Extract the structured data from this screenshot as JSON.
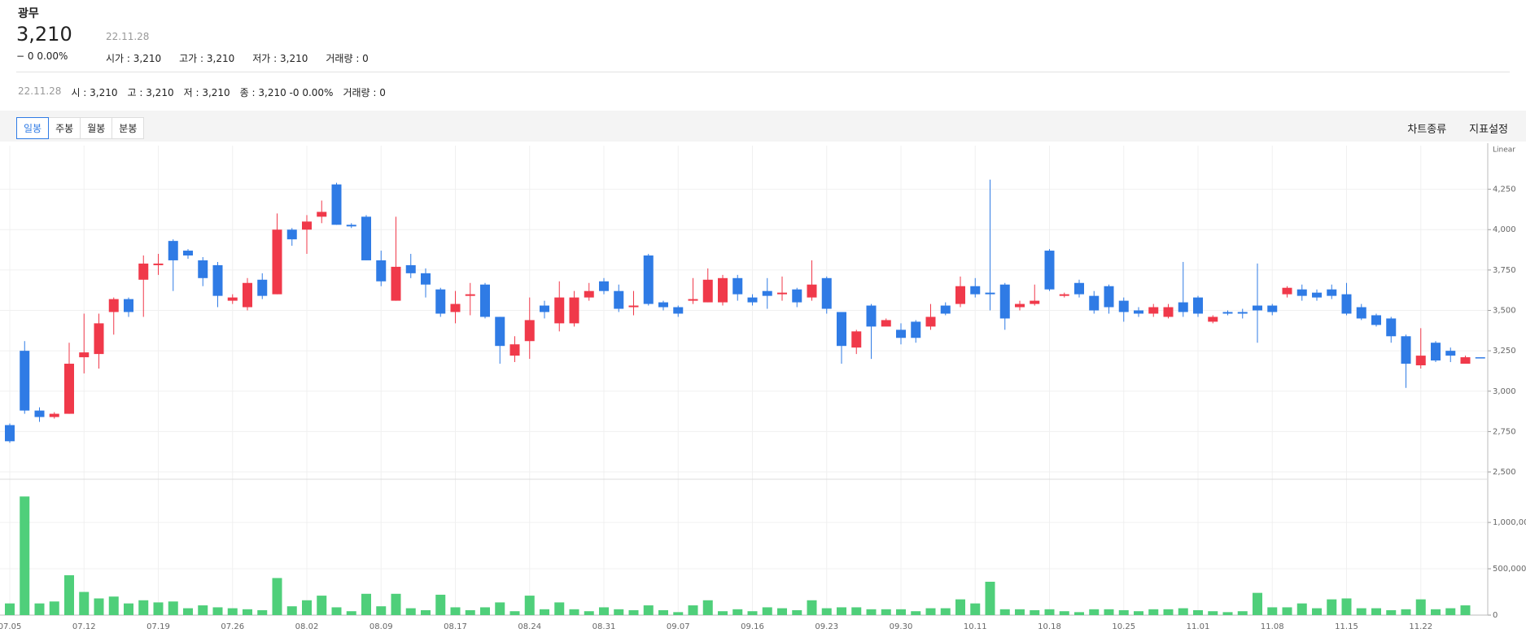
{
  "header": {
    "name": "광무",
    "price": "3,210",
    "date": "22.11.28",
    "change": "− 0 0.00%",
    "stats": [
      {
        "label": "시가",
        "value": "3,210"
      },
      {
        "label": "고가",
        "value": "3,210"
      },
      {
        "label": "저가",
        "value": "3,210"
      },
      {
        "label": "거래량",
        "value": "0"
      }
    ]
  },
  "info_line": {
    "date": "22.11.28",
    "items": [
      {
        "label": "시",
        "value": "3,210"
      },
      {
        "label": "고",
        "value": "3,210"
      },
      {
        "label": "저",
        "value": "3,210"
      },
      {
        "label": "종",
        "value": "3,210 -0 0.00%"
      },
      {
        "label": "거래량",
        "value": "0"
      }
    ]
  },
  "toolbar": {
    "periods": [
      "일봉",
      "주봉",
      "월봉",
      "분봉"
    ],
    "selected_index": 0,
    "menus": [
      "차트종류",
      "지표설정"
    ]
  },
  "chart_data": {
    "type": "candlestick",
    "scale_label": "Linear",
    "grid": true,
    "up_color": "#f0394a",
    "down_color": "#2f7be5",
    "categories": [
      "07.05",
      null,
      null,
      null,
      null,
      "07.12",
      null,
      null,
      null,
      null,
      "07.19",
      null,
      null,
      null,
      null,
      "07.26",
      null,
      null,
      null,
      null,
      "08.02",
      null,
      null,
      null,
      null,
      "08.09",
      null,
      null,
      null,
      null,
      "08.17",
      null,
      null,
      null,
      null,
      "08.24",
      null,
      null,
      null,
      null,
      "08.31",
      null,
      null,
      null,
      null,
      "09.07",
      null,
      null,
      null,
      null,
      "09.16",
      null,
      null,
      null,
      null,
      "09.23",
      null,
      null,
      null,
      null,
      "09.30",
      null,
      null,
      null,
      null,
      "10.11",
      null,
      null,
      null,
      null,
      "10.18",
      null,
      null,
      null,
      null,
      "10.25",
      null,
      null,
      null,
      null,
      "11.01",
      null,
      null,
      null,
      null,
      "11.08",
      null,
      null,
      null,
      null,
      "11.15",
      null,
      null,
      null,
      null,
      "11.22",
      null,
      null,
      null,
      null
    ],
    "open": [
      2790,
      3250,
      2880,
      2840,
      2860,
      3210,
      3230,
      3490,
      3570,
      3690,
      3780,
      3930,
      3870,
      3810,
      3780,
      3560,
      3520,
      3690,
      3600,
      4000,
      4000,
      4080,
      4280,
      4030,
      4080,
      3810,
      3560,
      3780,
      3730,
      3630,
      3490,
      3590,
      3660,
      3460,
      3220,
      3310,
      3530,
      3420,
      3420,
      3580,
      3680,
      3620,
      3520,
      3840,
      3550,
      3520,
      3560,
      3550,
      3550,
      3700,
      3580,
      3620,
      3600,
      3630,
      3580,
      3700,
      3490,
      3270,
      3530,
      3400,
      3380,
      3430,
      3400,
      3530,
      3540,
      3650,
      3610,
      3660,
      3520,
      3540,
      3870,
      3590,
      3670,
      3590,
      3650,
      3560,
      3500,
      3480,
      3460,
      3550,
      3580,
      3430,
      3490,
      3490,
      3530,
      3530,
      3600,
      3630,
      3610,
      3630,
      3600,
      3520,
      3470,
      3450,
      3340,
      3160,
      3300,
      3250,
      3170,
      3210
    ],
    "high": [
      2800,
      3310,
      2900,
      2870,
      3300,
      3480,
      3480,
      3580,
      3580,
      3840,
      3850,
      3940,
      3880,
      3830,
      3800,
      3600,
      3700,
      3730,
      4100,
      4010,
      4090,
      4180,
      4290,
      4040,
      4090,
      3870,
      4080,
      3850,
      3760,
      3640,
      3620,
      3670,
      3670,
      3460,
      3340,
      3580,
      3560,
      3680,
      3620,
      3670,
      3700,
      3660,
      3620,
      3850,
      3560,
      3530,
      3700,
      3760,
      3720,
      3720,
      3600,
      3700,
      3710,
      3640,
      3810,
      3710,
      3490,
      3380,
      3540,
      3450,
      3420,
      3440,
      3540,
      3550,
      3710,
      3700,
      4310,
      3670,
      3560,
      3660,
      3880,
      3610,
      3690,
      3620,
      3660,
      3580,
      3520,
      3540,
      3540,
      3800,
      3590,
      3470,
      3500,
      3510,
      3790,
      3540,
      3650,
      3660,
      3630,
      3660,
      3670,
      3540,
      3480,
      3460,
      3350,
      3390,
      3310,
      3270,
      3220,
      3210
    ],
    "low": [
      2680,
      2860,
      2810,
      2830,
      2860,
      3110,
      3140,
      3350,
      3460,
      3460,
      3720,
      3620,
      3820,
      3650,
      3520,
      3540,
      3500,
      3570,
      3600,
      3900,
      3850,
      4040,
      4030,
      4010,
      3810,
      3650,
      3560,
      3700,
      3580,
      3460,
      3420,
      3470,
      3450,
      3170,
      3180,
      3200,
      3450,
      3370,
      3400,
      3560,
      3600,
      3490,
      3470,
      3530,
      3500,
      3460,
      3540,
      3550,
      3530,
      3560,
      3530,
      3510,
      3560,
      3520,
      3560,
      3480,
      3170,
      3230,
      3200,
      3420,
      3290,
      3300,
      3380,
      3470,
      3520,
      3580,
      3500,
      3380,
      3500,
      3530,
      3620,
      3580,
      3580,
      3480,
      3480,
      3430,
      3460,
      3460,
      3450,
      3460,
      3460,
      3420,
      3470,
      3450,
      3300,
      3470,
      3580,
      3560,
      3560,
      3570,
      3470,
      3440,
      3400,
      3300,
      3020,
      3140,
      3180,
      3180,
      3170,
      3210
    ],
    "close": [
      2690,
      2880,
      2840,
      2860,
      3170,
      3240,
      3420,
      3570,
      3490,
      3790,
      3790,
      3810,
      3840,
      3700,
      3590,
      3580,
      3670,
      3590,
      4000,
      3940,
      4050,
      4110,
      4030,
      4020,
      3810,
      3680,
      3770,
      3730,
      3660,
      3480,
      3540,
      3600,
      3460,
      3280,
      3290,
      3440,
      3490,
      3580,
      3580,
      3620,
      3620,
      3510,
      3530,
      3540,
      3520,
      3480,
      3570,
      3690,
      3700,
      3600,
      3550,
      3590,
      3610,
      3550,
      3660,
      3510,
      3280,
      3370,
      3400,
      3440,
      3330,
      3330,
      3460,
      3480,
      3650,
      3600,
      3600,
      3450,
      3540,
      3560,
      3630,
      3600,
      3600,
      3500,
      3520,
      3490,
      3480,
      3520,
      3520,
      3490,
      3480,
      3460,
      3480,
      3480,
      3500,
      3490,
      3640,
      3590,
      3580,
      3590,
      3480,
      3450,
      3410,
      3340,
      3170,
      3220,
      3190,
      3220,
      3210,
      3210
    ],
    "ylim": [
      2470,
      4520
    ],
    "yticks": [
      {
        "value": 2500,
        "label": "2,500"
      },
      {
        "value": 2750,
        "label": "2,750"
      },
      {
        "value": 3000,
        "label": "3,000"
      },
      {
        "value": 3250,
        "label": "3,250"
      },
      {
        "value": 3500,
        "label": "3,500"
      },
      {
        "value": 3750,
        "label": "3,750"
      },
      {
        "value": 4000,
        "label": "4,000"
      },
      {
        "value": 4250,
        "label": "4,250"
      }
    ],
    "volume": {
      "color": "#4fcf7a",
      "ylim": [
        0,
        1440000
      ],
      "yticks": [
        0,
        {
          "value": 500000,
          "label": "500,000"
        },
        {
          "value": 1000000,
          "label": "1,000,000"
        }
      ],
      "values": [
        126000,
        1280000,
        126000,
        147000,
        430000,
        250000,
        180000,
        200000,
        126000,
        160000,
        137000,
        147000,
        74000,
        105000,
        84000,
        74000,
        63000,
        53000,
        400000,
        95000,
        160000,
        210000,
        84000,
        42000,
        230000,
        95000,
        230000,
        74000,
        53000,
        220000,
        84000,
        53000,
        84000,
        137000,
        42000,
        210000,
        63000,
        137000,
        63000,
        42000,
        84000,
        63000,
        53000,
        105000,
        53000,
        32000,
        105000,
        160000,
        42000,
        63000,
        42000,
        84000,
        74000,
        53000,
        160000,
        74000,
        84000,
        84000,
        63000,
        63000,
        63000,
        42000,
        74000,
        74000,
        170000,
        126000,
        360000,
        63000,
        63000,
        53000,
        63000,
        42000,
        32000,
        63000,
        63000,
        53000,
        42000,
        63000,
        63000,
        74000,
        53000,
        42000,
        32000,
        42000,
        240000,
        84000,
        84000,
        126000,
        74000,
        170000,
        180000,
        74000,
        74000,
        53000,
        63000,
        170000,
        63000,
        74000,
        105000,
        0
      ]
    }
  }
}
